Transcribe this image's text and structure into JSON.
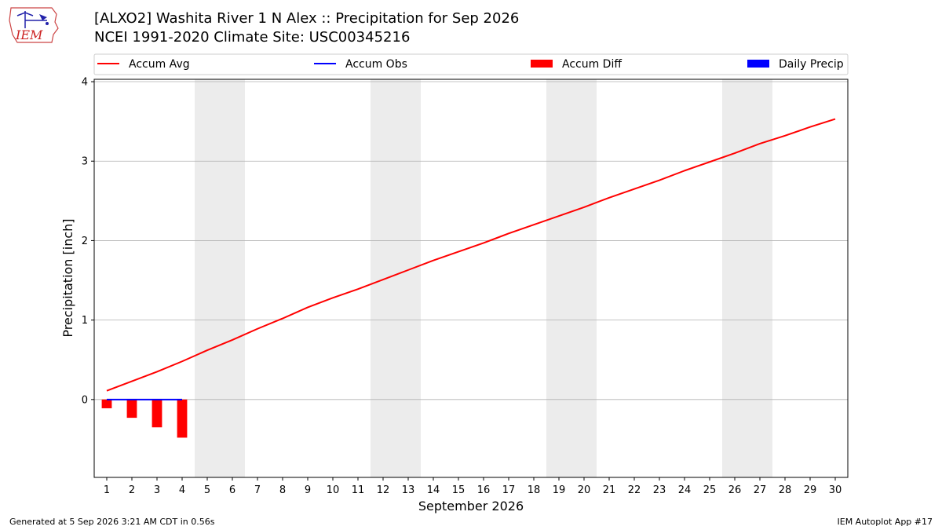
{
  "header": {
    "title_line1": "[ALXO2] Washita River 1 N Alex :: Precipitation for Sep 2026",
    "title_line2": "NCEI 1991-2020 Climate Site: USC00345216",
    "logo_text": "IEM"
  },
  "footer": {
    "generated": "Generated at 5 Sep 2026 3:21 AM CDT in 0.56s",
    "app": "IEM Autoplot App #17"
  },
  "colors": {
    "accum_avg": "#ff0000",
    "accum_obs": "#0000ff",
    "accum_diff": "#ff0000",
    "daily_precip": "#0000ff",
    "weekend_shade": "#ececec",
    "grid": "#b0b0b0"
  },
  "chart_data": {
    "type": "line",
    "xlabel": "September 2026",
    "ylabel": "Precipitation [inch]",
    "xlim": [
      0.5,
      30.5
    ],
    "ylim": [
      -0.98,
      4.03
    ],
    "yticks": [
      0,
      1,
      2,
      3,
      4
    ],
    "x": [
      1,
      2,
      3,
      4,
      5,
      6,
      7,
      8,
      9,
      10,
      11,
      12,
      13,
      14,
      15,
      16,
      17,
      18,
      19,
      20,
      21,
      22,
      23,
      24,
      25,
      26,
      27,
      28,
      29,
      30
    ],
    "legend_placement": "top, above plot",
    "grid": "horizontal",
    "legend": [
      {
        "label": "Accum Avg",
        "kind": "line",
        "color": "#ff0000"
      },
      {
        "label": "Accum Obs",
        "kind": "line",
        "color": "#0000ff"
      },
      {
        "label": "Accum Diff",
        "kind": "bar",
        "color": "#ff0000"
      },
      {
        "label": "Daily Precip",
        "kind": "bar",
        "color": "#0000ff"
      }
    ],
    "weekend_shading": [
      [
        5,
        6
      ],
      [
        12,
        13
      ],
      [
        19,
        20
      ],
      [
        26,
        27
      ]
    ],
    "series": [
      {
        "name": "Accum Avg",
        "type": "line",
        "color": "#ff0000",
        "x": [
          1,
          2,
          3,
          4,
          5,
          6,
          7,
          8,
          9,
          10,
          11,
          12,
          13,
          14,
          15,
          16,
          17,
          18,
          19,
          20,
          21,
          22,
          23,
          24,
          25,
          26,
          27,
          28,
          29,
          30
        ],
        "values": [
          0.11,
          0.23,
          0.35,
          0.48,
          0.62,
          0.75,
          0.89,
          1.02,
          1.16,
          1.28,
          1.39,
          1.51,
          1.63,
          1.75,
          1.86,
          1.97,
          2.09,
          2.2,
          2.31,
          2.42,
          2.54,
          2.65,
          2.76,
          2.88,
          2.99,
          3.1,
          3.22,
          3.32,
          3.43,
          3.53
        ]
      },
      {
        "name": "Accum Obs",
        "type": "line",
        "color": "#0000ff",
        "x": [
          1,
          2,
          3,
          4
        ],
        "values": [
          0.0,
          0.0,
          0.0,
          0.0
        ]
      },
      {
        "name": "Accum Diff",
        "type": "bar",
        "color": "#ff0000",
        "x": [
          1,
          2,
          3,
          4
        ],
        "values": [
          -0.11,
          -0.23,
          -0.35,
          -0.48
        ]
      },
      {
        "name": "Daily Precip",
        "type": "bar",
        "color": "#0000ff",
        "x": [
          1,
          2,
          3,
          4
        ],
        "values": [
          0.0,
          0.0,
          0.0,
          0.0
        ]
      }
    ]
  }
}
